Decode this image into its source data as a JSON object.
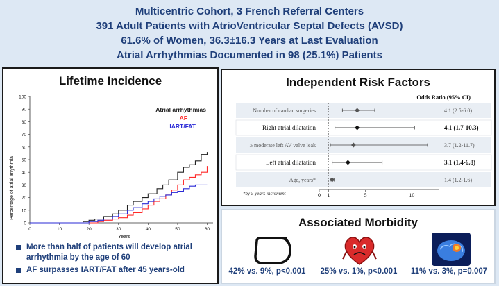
{
  "header": {
    "line1": "Multicentric Cohort, 3 French Referral Centers",
    "line2": "391 Adult Patients with AtrioVentricular Septal Defects (AVSD)",
    "line3": "61.6% of Women, 36.3±16.3 Years at Last Evaluation",
    "line4": "Atrial Arrhythmias Documented in 98 (25.1%) Patients"
  },
  "lifetime": {
    "title": "Lifetime Incidence",
    "legend": {
      "aa": "Atrial arrhythmias",
      "af": "AF",
      "iart": "IART/FAT"
    },
    "colors": {
      "aa": "#222222",
      "af": "#ff2a2a",
      "iart": "#2a2ad6"
    },
    "bullet1": "More than half of patients will develop atrial arrhythmia by the age of 60",
    "bullet2": "AF surpasses IART/FAT after 45 years-old"
  },
  "risk": {
    "title": "Independent Risk Factors",
    "or_header": "Odds Ratio (95% CI)",
    "footnote": "*by 5 years increment",
    "rows": [
      {
        "label": "Number of cardiac surgeries",
        "ci": "4.1 (2.5-6.0)"
      },
      {
        "label": "Right atrial dilatation",
        "ci": "4.1 (1.7-10.3)"
      },
      {
        "label": "≥ moderate left AV valve leak",
        "ci": "3.7 (1.2-11.7)"
      },
      {
        "label": "Left atrial dilatation",
        "ci": "3.1 (1.4-6.8)"
      },
      {
        "label": "Age, years*",
        "ci": "1.4 (1.2-1.6)"
      }
    ],
    "axis_ticks": [
      "0",
      "1",
      "5",
      "10"
    ]
  },
  "morbidity": {
    "title": "Associated Morbidity",
    "items": [
      {
        "icon": "pacemaker-icon",
        "stat": "42% vs. 9%, p<0.001"
      },
      {
        "icon": "heart-failure-icon",
        "stat": "25% vs. 1%, p<0.001"
      },
      {
        "icon": "brain-stroke-icon",
        "stat": "11% vs. 3%, p=0.007"
      }
    ]
  },
  "chart_data": [
    {
      "type": "line",
      "title": "Lifetime Incidence",
      "xlabel": "Years",
      "ylabel": "Percentage of atrial arrythmia",
      "xlim": [
        0,
        62
      ],
      "ylim": [
        0,
        100
      ],
      "x_ticks": [
        0,
        10,
        20,
        30,
        40,
        50,
        60
      ],
      "y_ticks": [
        0,
        10,
        20,
        30,
        40,
        50,
        60,
        70,
        80,
        90,
        100
      ],
      "grid": false,
      "legend_position": "top-right",
      "series": [
        {
          "name": "Atrial arrhythmias",
          "color": "#222222",
          "points": [
            [
              0,
              0
            ],
            [
              10,
              0
            ],
            [
              15,
              0
            ],
            [
              18,
              1
            ],
            [
              20,
              2
            ],
            [
              22,
              3
            ],
            [
              25,
              5
            ],
            [
              28,
              7
            ],
            [
              30,
              10
            ],
            [
              33,
              14
            ],
            [
              35,
              17
            ],
            [
              38,
              20
            ],
            [
              40,
              23
            ],
            [
              43,
              27
            ],
            [
              45,
              30
            ],
            [
              47,
              34
            ],
            [
              50,
              40
            ],
            [
              52,
              44
            ],
            [
              54,
              46
            ],
            [
              56,
              49
            ],
            [
              58,
              54
            ],
            [
              60,
              56
            ]
          ]
        },
        {
          "name": "AF",
          "color": "#ff2a2a",
          "points": [
            [
              0,
              0
            ],
            [
              15,
              0
            ],
            [
              20,
              0
            ],
            [
              23,
              1
            ],
            [
              25,
              2
            ],
            [
              28,
              3
            ],
            [
              30,
              4
            ],
            [
              33,
              6
            ],
            [
              35,
              8
            ],
            [
              38,
              11
            ],
            [
              40,
              14
            ],
            [
              42,
              17
            ],
            [
              44,
              19
            ],
            [
              46,
              22
            ],
            [
              48,
              26
            ],
            [
              50,
              30
            ],
            [
              52,
              34
            ],
            [
              54,
              36
            ],
            [
              56,
              38
            ],
            [
              58,
              40
            ],
            [
              60,
              45
            ]
          ]
        },
        {
          "name": "IART/FAT",
          "color": "#2a2ad6",
          "points": [
            [
              0,
              0
            ],
            [
              15,
              0
            ],
            [
              20,
              1
            ],
            [
              23,
              2
            ],
            [
              25,
              3
            ],
            [
              28,
              5
            ],
            [
              30,
              7
            ],
            [
              33,
              10
            ],
            [
              35,
              12
            ],
            [
              38,
              15
            ],
            [
              40,
              17
            ],
            [
              42,
              19
            ],
            [
              44,
              21
            ],
            [
              46,
              22
            ],
            [
              48,
              24
            ],
            [
              50,
              25
            ],
            [
              52,
              27
            ],
            [
              54,
              29
            ],
            [
              56,
              30
            ],
            [
              58,
              30
            ],
            [
              60,
              30
            ]
          ]
        }
      ]
    },
    {
      "type": "scatter",
      "title": "Independent Risk Factors",
      "xlabel": "Odds Ratio (95% CI)",
      "xlim": [
        0,
        12
      ],
      "x_ticks": [
        0,
        1,
        5,
        10
      ],
      "reference_line": 1,
      "categories": [
        "Number of cardiac surgeries",
        "Right atrial dilatation",
        "≥ moderate left AV valve leak",
        "Left atrial dilatation",
        "Age, years*"
      ],
      "estimates": [
        4.1,
        4.1,
        3.7,
        3.1,
        1.4
      ],
      "ci_low": [
        2.5,
        1.7,
        1.2,
        1.4,
        1.2
      ],
      "ci_high": [
        6.0,
        10.3,
        11.7,
        6.8,
        1.6
      ]
    }
  ]
}
